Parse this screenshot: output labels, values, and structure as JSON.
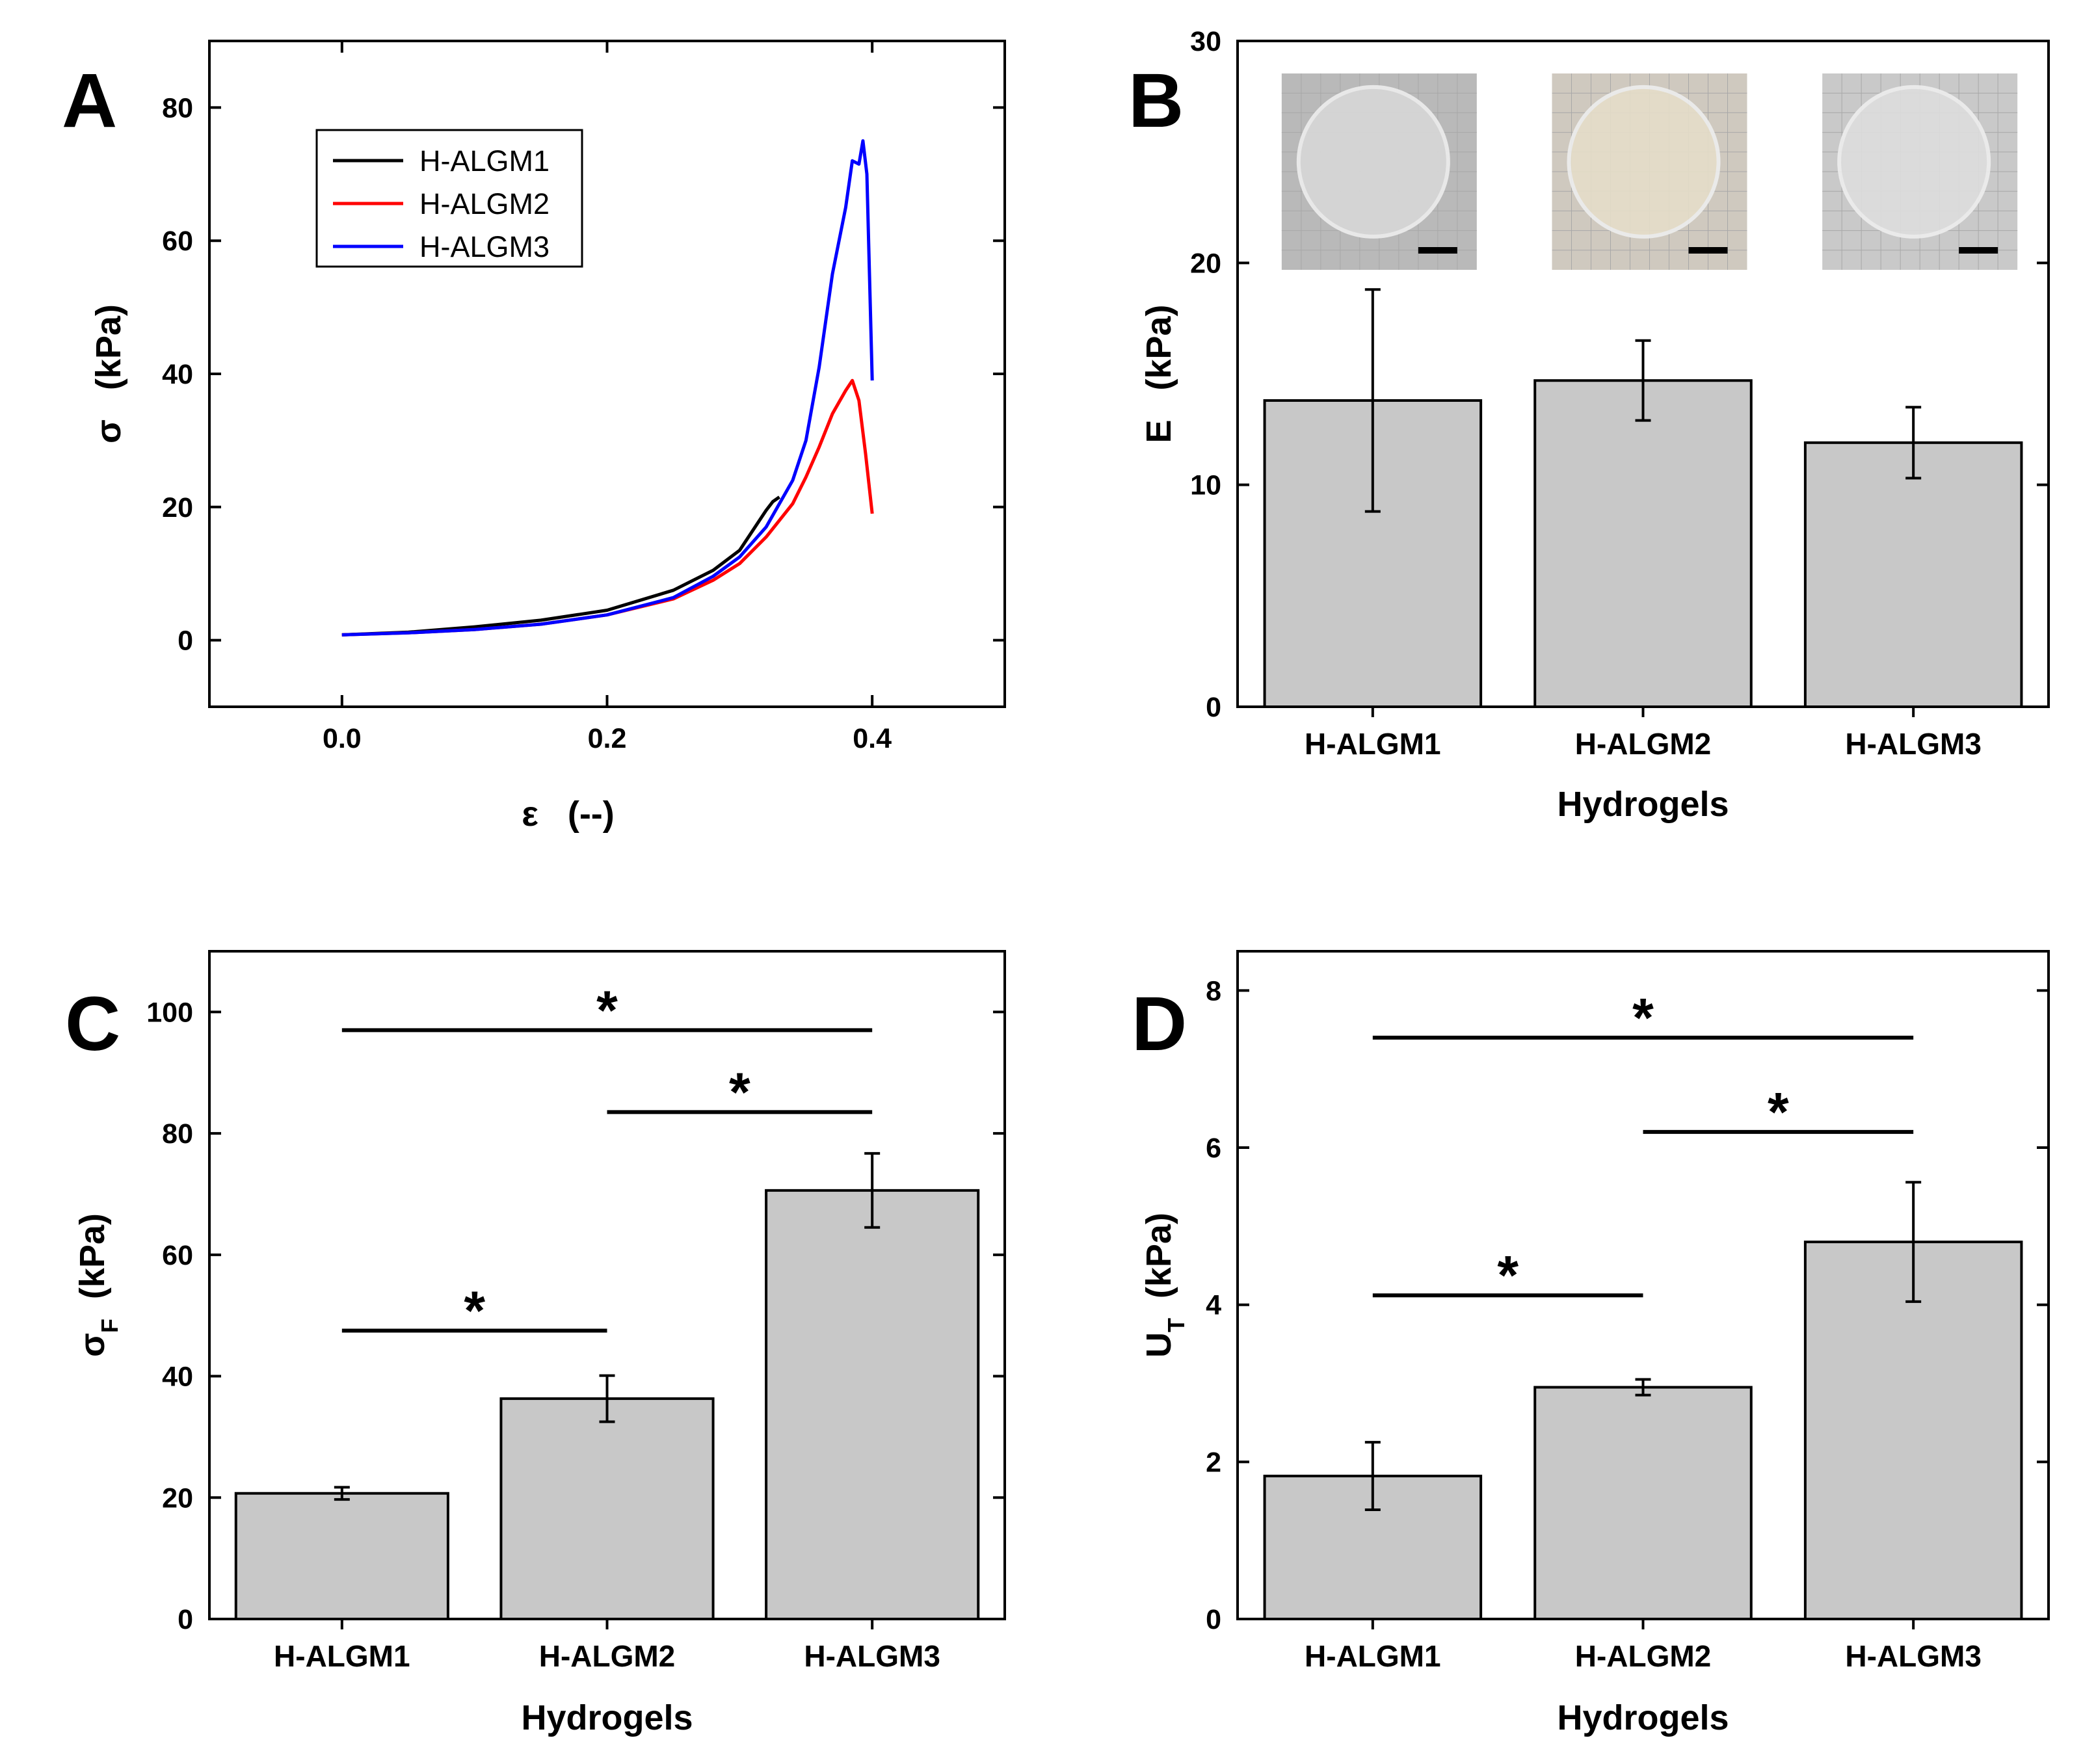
{
  "chart_data": [
    {
      "panel": "A",
      "type": "line",
      "xlabel": "ε   (--)",
      "ylabel": "σ   (kPa)",
      "xlim": [
        -0.1,
        0.5
      ],
      "ylim": [
        -10,
        90
      ],
      "xticks": [
        0.0,
        0.2,
        0.4
      ],
      "xtick_labels": [
        "0.0",
        "0.2",
        "0.4"
      ],
      "yticks": [
        0,
        20,
        40,
        60,
        80
      ],
      "ytick_labels": [
        "0",
        "20",
        "40",
        "60",
        "80"
      ],
      "legend": {
        "position": "top-left",
        "entries": [
          "H-ALGM1",
          "H-ALGM2",
          "H-ALGM3"
        ]
      },
      "series": [
        {
          "name": "H-ALGM1",
          "color": "#000000",
          "x": [
            0.0,
            0.05,
            0.1,
            0.15,
            0.2,
            0.25,
            0.28,
            0.3,
            0.32,
            0.325,
            0.33
          ],
          "y": [
            0.8,
            1.2,
            2.0,
            3.0,
            4.5,
            7.5,
            10.5,
            13.5,
            19.5,
            20.8,
            21.5
          ]
        },
        {
          "name": "H-ALGM2",
          "color": "#ff0000",
          "x": [
            0.0,
            0.05,
            0.1,
            0.15,
            0.2,
            0.25,
            0.28,
            0.3,
            0.32,
            0.34,
            0.35,
            0.36,
            0.37,
            0.38,
            0.385,
            0.39,
            0.395,
            0.4
          ],
          "y": [
            0.8,
            1.1,
            1.6,
            2.4,
            3.8,
            6.2,
            9.0,
            11.5,
            15.5,
            20.5,
            24.5,
            29.0,
            34.0,
            37.5,
            39.0,
            36.0,
            28.0,
            19.0
          ]
        },
        {
          "name": "H-ALGM3",
          "color": "#0000ff",
          "x": [
            0.0,
            0.05,
            0.1,
            0.15,
            0.2,
            0.25,
            0.28,
            0.3,
            0.32,
            0.34,
            0.35,
            0.36,
            0.37,
            0.38,
            0.385,
            0.39,
            0.393,
            0.396,
            0.4
          ],
          "y": [
            0.8,
            1.1,
            1.6,
            2.4,
            3.8,
            6.4,
            9.6,
            12.5,
            17.0,
            24.0,
            30.0,
            41.0,
            55.0,
            65.0,
            72.0,
            71.5,
            75.0,
            70.0,
            39.0
          ]
        }
      ]
    },
    {
      "panel": "B",
      "type": "bar",
      "categories": [
        "H-ALGM1",
        "H-ALGM2",
        "H-ALGM3"
      ],
      "values": [
        13.8,
        14.7,
        11.9
      ],
      "errors": [
        5.0,
        1.8,
        1.6
      ],
      "xlabel": "Hydrogels",
      "ylabel": "E   (kPa)",
      "ylim": [
        0,
        30
      ],
      "yticks": [
        0,
        10,
        20,
        30
      ],
      "ytick_labels": [
        "0",
        "10",
        "20",
        "30"
      ],
      "bar_color": "#c8c8c8",
      "insets": [
        "H-ALGM1 hydrogel photo",
        "H-ALGM2 hydrogel photo",
        "H-ALGM3 hydrogel photo"
      ]
    },
    {
      "panel": "C",
      "type": "bar",
      "categories": [
        "H-ALGM1",
        "H-ALGM2",
        "H-ALGM3"
      ],
      "values": [
        20.7,
        36.3,
        70.6
      ],
      "errors": [
        1.0,
        3.8,
        6.1
      ],
      "xlabel": "Hydrogels",
      "ylabel": "σF   (kPa)",
      "ylabel_main": "σ",
      "ylabel_sub": "F",
      "ylabel_unit": "(kPa)",
      "ylim": [
        0,
        110
      ],
      "yticks": [
        0,
        20,
        40,
        60,
        80,
        100
      ],
      "ytick_labels": [
        "0",
        "20",
        "40",
        "60",
        "80",
        "100"
      ],
      "bar_color": "#c8c8c8",
      "significance": [
        {
          "from": 0,
          "to": 2,
          "y": 97,
          "label": "*"
        },
        {
          "from": 1,
          "to": 2,
          "y": 83.5,
          "label": "*"
        },
        {
          "from": 0,
          "to": 1,
          "y": 47.5,
          "label": "*"
        }
      ]
    },
    {
      "panel": "D",
      "type": "bar",
      "categories": [
        "H-ALGM1",
        "H-ALGM2",
        "H-ALGM3"
      ],
      "values": [
        1.82,
        2.95,
        4.8
      ],
      "errors": [
        0.43,
        0.1,
        0.76
      ],
      "xlabel": "Hydrogels",
      "ylabel": "UT   (kPa)",
      "ylabel_main": "U",
      "ylabel_sub": "T",
      "ylabel_unit": "(kPa)",
      "ylim": [
        0,
        8.5
      ],
      "yticks": [
        0,
        2,
        4,
        6,
        8
      ],
      "ytick_labels": [
        "0",
        "2",
        "4",
        "6",
        "8"
      ],
      "bar_color": "#c8c8c8",
      "significance": [
        {
          "from": 0,
          "to": 2,
          "y": 7.4,
          "label": "*"
        },
        {
          "from": 1,
          "to": 2,
          "y": 6.2,
          "label": "*"
        },
        {
          "from": 0,
          "to": 1,
          "y": 4.12,
          "label": "*"
        }
      ]
    }
  ],
  "panels": {
    "A": {
      "letter": "A"
    },
    "B": {
      "letter": "B"
    },
    "C": {
      "letter": "C"
    },
    "D": {
      "letter": "D"
    }
  }
}
